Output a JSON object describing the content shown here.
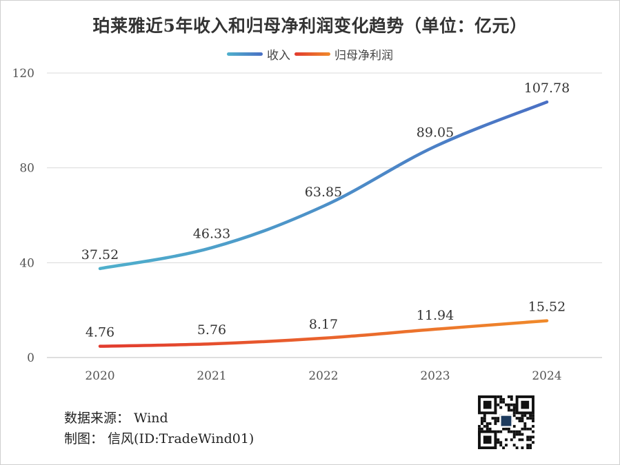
{
  "title": "珀莱雅近5年收入和归母净利润变化趋势（单位：亿元）",
  "legend": [
    {
      "label": "收入",
      "color_start": "#4fb0cc",
      "color_end": "#4a70c4"
    },
    {
      "label": "归母净利润",
      "color_start": "#e23b2e",
      "color_end": "#f08a2b"
    }
  ],
  "source": "数据来源：  Wind",
  "author": "制图：  信风(ID:TradeWind01)",
  "chart_data": {
    "type": "line",
    "title": "珀莱雅近5年收入和归母净利润变化趋势（单位：亿元）",
    "x": [
      "2020",
      "2021",
      "2022",
      "2023",
      "2024"
    ],
    "series": [
      {
        "name": "收入",
        "values": [
          37.52,
          46.33,
          63.85,
          89.05,
          107.78
        ]
      },
      {
        "name": "归母净利润",
        "values": [
          4.76,
          5.76,
          8.17,
          11.94,
          15.52
        ]
      }
    ],
    "value_labels": [
      [
        "37.52",
        "46.33",
        "63.85",
        "89.05",
        "107.78"
      ],
      [
        "4.76",
        "5.76",
        "8.17",
        "11.94",
        "15.52"
      ]
    ],
    "ylim": [
      0,
      120
    ],
    "yticks": [
      "0",
      "40",
      "80",
      "120"
    ],
    "grid": true,
    "legend_position": "top-center",
    "smooth": true
  }
}
